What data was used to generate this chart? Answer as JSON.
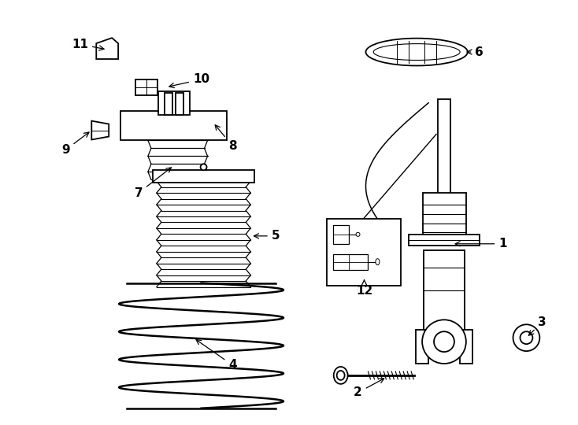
{
  "background_color": "#ffffff",
  "line_color": "#000000",
  "figure_width": 7.34,
  "figure_height": 5.4,
  "dpi": 100
}
